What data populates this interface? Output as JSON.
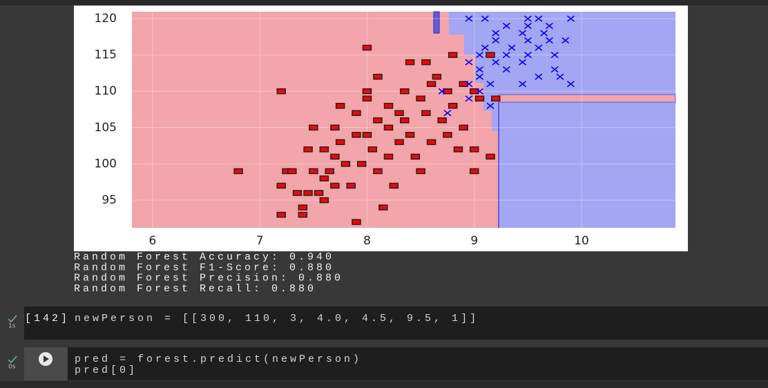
{
  "chart_data": {
    "type": "scatter",
    "xlim": [
      5.807,
      10.876
    ],
    "ylim": [
      91.2,
      120.95
    ],
    "xticks": [
      6,
      7,
      8,
      9,
      10
    ],
    "yticks": [
      95,
      100,
      105,
      110,
      115,
      120
    ],
    "grid": true,
    "series": [
      {
        "color": "#ff0000",
        "marker": "square",
        "x": [
          6.8,
          7.2,
          7.2,
          7.2,
          7.25,
          7.3,
          7.35,
          7.4,
          7.4,
          7.45,
          7.45,
          7.5,
          7.5,
          7.55,
          7.6,
          7.6,
          7.6,
          7.65,
          7.7,
          7.7,
          7.7,
          7.75,
          7.75,
          7.8,
          7.85,
          7.9,
          7.9,
          7.9,
          7.95,
          8.0,
          8.0,
          8.0,
          8.0,
          8.05,
          8.1,
          8.1,
          8.1,
          8.15,
          8.2,
          8.2,
          8.2,
          8.25,
          8.3,
          8.3,
          8.35,
          8.35,
          8.4,
          8.4,
          8.45,
          8.5,
          8.5,
          8.55,
          8.55,
          8.6,
          8.6,
          8.65,
          8.7,
          8.75,
          8.75,
          8.8,
          8.8,
          8.85,
          8.9,
          8.9,
          9.0,
          9.0,
          9.0,
          9.05,
          9.15,
          9.2,
          9.15
        ],
        "y": [
          99,
          110,
          97,
          93,
          99,
          99,
          96,
          94,
          93,
          96,
          102,
          99,
          105,
          96,
          102,
          98,
          95,
          99,
          105,
          101,
          97,
          103,
          108,
          100,
          97,
          107,
          104,
          92,
          100,
          110,
          116,
          109,
          104,
          102,
          112,
          106,
          99,
          94,
          105,
          108,
          101,
          97,
          107,
          103,
          110,
          106,
          114,
          104,
          101,
          99,
          109,
          114,
          107,
          103,
          111,
          112,
          106,
          110,
          104,
          115,
          108,
          102,
          111,
          105,
          99,
          110,
          102,
          109,
          115,
          109,
          101
        ]
      },
      {
        "color": "#0000ff",
        "marker": "x",
        "x": [
          8.95,
          9.1,
          9.5,
          9.6,
          9.9,
          9.3,
          9.5,
          9.7,
          9.2,
          9.45,
          9.65,
          9.2,
          9.5,
          9.7,
          9.85,
          9.1,
          9.35,
          9.6,
          9.05,
          9.3,
          9.5,
          9.75,
          8.95,
          9.2,
          9.45,
          9.75,
          9.05,
          9.3,
          9.05,
          9.6,
          9.8,
          8.95,
          9.15,
          9.45,
          9.9,
          9.05,
          8.7,
          8.95,
          9.15,
          8.75
        ],
        "y": [
          120,
          120,
          120,
          120,
          120,
          119,
          119,
          119,
          118,
          118,
          118,
          117,
          117,
          117,
          117,
          116,
          116,
          116,
          115,
          115,
          115,
          115,
          114,
          114,
          114,
          113,
          113,
          113,
          112,
          112,
          112,
          111,
          111,
          111,
          111,
          110,
          110,
          109,
          108,
          107
        ]
      }
    ]
  },
  "outputs": [
    "Random Forest Accuracy: 0.940",
    "Random Forest F1-Score: 0.880",
    "Random Forest Precision: 0.880",
    "Random Forest Recall: 0.880"
  ],
  "cells": [
    {
      "time": "1s",
      "exec_count": "[142]",
      "code": [
        "newPerson = [[300, 110, 3, 4.0, 4.5, 9.5, 1]]"
      ]
    },
    {
      "time": "0s",
      "code": [
        "pred = forest.predict(newPerson)",
        "pred[0]"
      ]
    }
  ]
}
